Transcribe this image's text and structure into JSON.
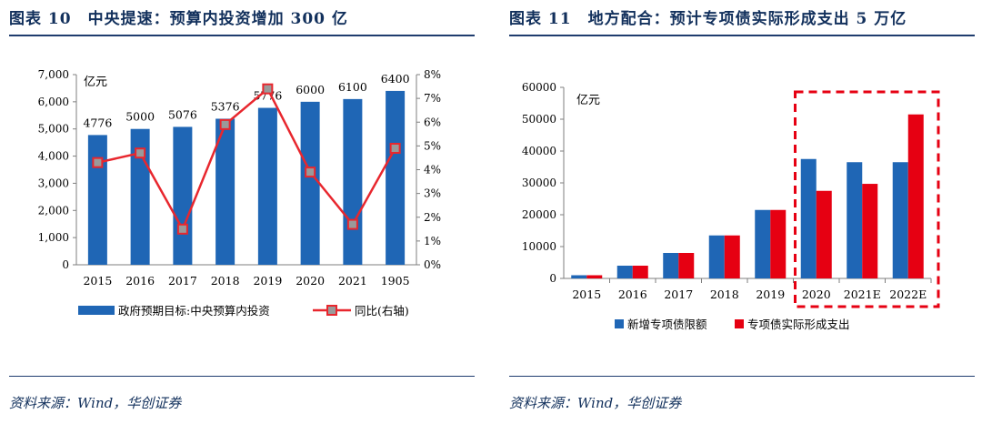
{
  "left": {
    "title": "图表 10　中央提速：预算内投资增加 300 亿",
    "source": "资料来源：Wind，华创证券",
    "chart_data": {
      "type": "bar",
      "unit_label": "亿元",
      "categories": [
        "2015",
        "2016",
        "2017",
        "2018",
        "2019",
        "2020",
        "2021",
        "1905"
      ],
      "series": [
        {
          "name": "政府预期目标:中央预算内投资",
          "type": "bar",
          "axis": "left",
          "values": [
            4776,
            5000,
            5076,
            5376,
            5776,
            6000,
            6100,
            6400
          ],
          "data_labels": [
            "4776",
            "5000",
            "5076",
            "5376",
            "5776",
            "6000",
            "6100",
            "6400"
          ]
        },
        {
          "name": "同比(右轴)",
          "type": "line",
          "axis": "right",
          "values": [
            4.3,
            4.7,
            1.5,
            5.9,
            7.4,
            3.9,
            1.7,
            4.9
          ]
        }
      ],
      "ylim": [
        0,
        7000
      ],
      "yticks": [
        "7,000",
        "6,000",
        "5,000",
        "4,000",
        "3,000",
        "2,000",
        "1,000",
        "0"
      ],
      "y2lim": [
        0,
        8
      ],
      "y2ticks": [
        "8%",
        "7%",
        "6%",
        "5%",
        "4%",
        "3%",
        "2%",
        "1%",
        "0%"
      ],
      "legend": [
        "政府预期目标:中央预算内投资",
        "同比(右轴)"
      ],
      "colors": {
        "bar": "#1f66b5",
        "line": "#e8272e",
        "marker": "#9a9a9a"
      }
    }
  },
  "right": {
    "title": "图表 11　地方配合：预计专项债实际形成支出 5 万亿",
    "source": "资料来源：Wind，华创证券",
    "chart_data": {
      "type": "bar",
      "unit_label": "亿元",
      "categories": [
        "2015",
        "2016",
        "2017",
        "2018",
        "2019",
        "2020",
        "2021E",
        "2022E"
      ],
      "series": [
        {
          "name": "新增专项债限额",
          "values": [
            1000,
            4000,
            8000,
            13500,
            21500,
            37500,
            36500,
            36500
          ]
        },
        {
          "name": "专项债实际形成支出",
          "values": [
            1000,
            4000,
            8000,
            13500,
            21500,
            27500,
            29700,
            51500
          ]
        }
      ],
      "ylim": [
        0,
        60000
      ],
      "yticks": [
        "60000",
        "50000",
        "40000",
        "30000",
        "20000",
        "10000",
        "0"
      ],
      "legend": [
        "新增专项债限额",
        "专项债实际形成支出"
      ],
      "highlight": [
        "2020",
        "2021E",
        "2022E"
      ],
      "colors": {
        "series1": "#1f66b5",
        "series2": "#e60012",
        "highlight_box": "#e60012"
      }
    }
  }
}
